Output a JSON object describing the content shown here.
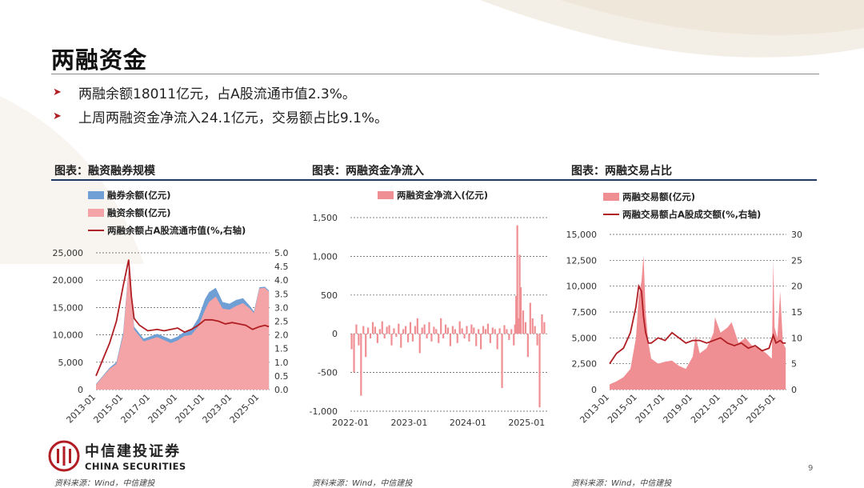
{
  "page": {
    "title": "两融资金",
    "bullets": [
      "两融余额18011亿元，占A股流通市值2.3%。",
      "上周两融资金净流入24.1亿元，交易额占比9.1%。"
    ],
    "brand_cn": "中信建投证券",
    "brand_en": "CHINA SECURITIES",
    "page_number": "9",
    "colors": {
      "accent_red": "#b01e23",
      "pink": "#f4a4a6",
      "blue": "#6f9fd4",
      "navy": "#1f3864"
    }
  },
  "chart_data": [
    {
      "type": "area",
      "panel_title": "图表：融资融券规模",
      "source": "资料来源：Wind，中信建投",
      "y_ticks": [
        "0",
        "5,000",
        "10,000",
        "15,000",
        "20,000",
        "25,000"
      ],
      "y2_ticks": [
        "0.0",
        "0.5",
        "1.0",
        "1.5",
        "2.0",
        "2.5",
        "3.0",
        "3.5",
        "4.0",
        "4.5",
        "5.0"
      ],
      "x_ticks": [
        "2013-01",
        "2015-01",
        "2017-01",
        "2019-01",
        "2021-01",
        "2023-01",
        "2025-01"
      ],
      "ylim": [
        0,
        25000
      ],
      "y2lim": [
        0,
        5
      ],
      "xlim": [
        2013.0,
        2025.75
      ],
      "series": [
        {
          "name": "融券余额(亿元)",
          "color": "#6f9fd4",
          "kind": "area",
          "x": [
            2013.0,
            2014.0,
            2014.5,
            2015.0,
            2015.4,
            2015.8,
            2016.5,
            2017.5,
            2018.5,
            2019.0,
            2019.5,
            2020.0,
            2020.5,
            2021.0,
            2021.3,
            2021.8,
            2022.3,
            2022.8,
            2023.3,
            2023.8,
            2024.3,
            2024.6,
            2025.0,
            2025.4,
            2025.7
          ],
          "values": [
            1000,
            4000,
            5000,
            10500,
            22300,
            11500,
            9300,
            10200,
            9200,
            9700,
            10600,
            11000,
            13000,
            16500,
            17800,
            18600,
            16000,
            15700,
            16400,
            16700,
            15300,
            14300,
            18700,
            18800,
            18100
          ]
        },
        {
          "name": "融资余额(亿元)",
          "color": "#f4a4a6",
          "kind": "area",
          "x": [
            2013.0,
            2014.0,
            2014.5,
            2015.0,
            2015.4,
            2015.8,
            2016.5,
            2017.5,
            2018.5,
            2019.0,
            2019.5,
            2020.0,
            2020.5,
            2021.0,
            2021.3,
            2021.8,
            2022.3,
            2022.8,
            2023.3,
            2023.8,
            2024.3,
            2024.6,
            2025.0,
            2025.4,
            2025.7
          ],
          "values": [
            900,
            3800,
            4700,
            10000,
            22000,
            11000,
            8800,
            9600,
            8500,
            9000,
            9800,
            10000,
            11500,
            14500,
            16000,
            17000,
            14800,
            14600,
            15300,
            15800,
            14800,
            14000,
            18500,
            18600,
            17900
          ]
        },
        {
          "name": "两融余额占A股流通市值(%,右轴)",
          "color": "#b01e23",
          "kind": "line",
          "axis": "right",
          "x": [
            2013.0,
            2013.5,
            2014.0,
            2014.5,
            2015.0,
            2015.4,
            2015.6,
            2015.8,
            2016.2,
            2016.8,
            2017.5,
            2018.0,
            2018.5,
            2019.0,
            2019.5,
            2020.0,
            2020.5,
            2021.0,
            2021.5,
            2022.0,
            2022.5,
            2023.0,
            2023.5,
            2024.0,
            2024.5,
            2025.0,
            2025.4,
            2025.7
          ],
          "values": [
            0.5,
            1.1,
            1.7,
            2.5,
            3.8,
            4.75,
            3.4,
            2.6,
            2.35,
            2.15,
            2.2,
            2.15,
            2.2,
            2.25,
            2.1,
            2.2,
            2.35,
            2.55,
            2.55,
            2.5,
            2.4,
            2.45,
            2.4,
            2.35,
            2.2,
            2.3,
            2.35,
            2.3
          ]
        }
      ]
    },
    {
      "type": "bar",
      "panel_title": "图表：两融资金净流入",
      "source": "资料来源：Wind，中信建投",
      "y_ticks": [
        "-1,000",
        "-500",
        "0",
        "500",
        "1,000",
        "1,500"
      ],
      "x_ticks": [
        "2022-01",
        "2023-01",
        "2024-01",
        "2025-01"
      ],
      "ylim": [
        -1000,
        1500
      ],
      "xlim": [
        2022.0,
        2025.35
      ],
      "series": [
        {
          "name": "两融资金净流入(亿元)",
          "color": "#f08f93",
          "x": [
            2022.02,
            2022.06,
            2022.1,
            2022.14,
            2022.18,
            2022.22,
            2022.26,
            2022.3,
            2022.34,
            2022.38,
            2022.42,
            2022.46,
            2022.5,
            2022.54,
            2022.58,
            2022.62,
            2022.66,
            2022.7,
            2022.74,
            2022.78,
            2022.82,
            2022.86,
            2022.9,
            2022.94,
            2022.98,
            2023.02,
            2023.06,
            2023.1,
            2023.14,
            2023.18,
            2023.22,
            2023.26,
            2023.3,
            2023.34,
            2023.38,
            2023.42,
            2023.46,
            2023.5,
            2023.54,
            2023.58,
            2023.62,
            2023.66,
            2023.7,
            2023.74,
            2023.78,
            2023.82,
            2023.86,
            2023.9,
            2023.94,
            2023.98,
            2024.02,
            2024.06,
            2024.1,
            2024.14,
            2024.18,
            2024.22,
            2024.26,
            2024.3,
            2024.34,
            2024.38,
            2024.42,
            2024.46,
            2024.5,
            2024.54,
            2024.58,
            2024.62,
            2024.66,
            2024.7,
            2024.74,
            2024.78,
            2024.8,
            2024.82,
            2024.84,
            2024.86,
            2024.88,
            2024.9,
            2024.94,
            2024.98,
            2025.02,
            2025.06,
            2025.1,
            2025.14,
            2025.18,
            2025.22,
            2025.26,
            2025.3
          ],
          "values": [
            -200,
            -500,
            120,
            -150,
            -800,
            100,
            -300,
            80,
            -60,
            150,
            90,
            -120,
            60,
            160,
            -60,
            90,
            110,
            -150,
            70,
            -40,
            130,
            -180,
            60,
            100,
            -110,
            150,
            -100,
            100,
            200,
            -250,
            80,
            120,
            -60,
            150,
            -100,
            90,
            60,
            -120,
            200,
            -60,
            120,
            80,
            -160,
            100,
            60,
            -120,
            160,
            70,
            -60,
            100,
            -100,
            120,
            80,
            -160,
            60,
            -200,
            100,
            60,
            130,
            -120,
            80,
            60,
            -200,
            70,
            -700,
            110,
            60,
            -80,
            60,
            -150,
            120,
            490,
            1400,
            200,
            1020,
            600,
            300,
            150,
            -300,
            400,
            200,
            100,
            -150,
            -950,
            250,
            150
          ]
        }
      ]
    },
    {
      "type": "area",
      "panel_title": "图表：两融交易占比",
      "source": "资料来源：Wind，中信建投",
      "y_ticks": [
        "0",
        "2,500",
        "5,000",
        "7,500",
        "10,000",
        "12,500",
        "15,000"
      ],
      "y2_ticks": [
        "0",
        "5",
        "10",
        "15",
        "20",
        "25",
        "30"
      ],
      "x_ticks": [
        "2013-01",
        "2015-01",
        "2017-01",
        "2019-01",
        "2021-01",
        "2023-01",
        "2025-01"
      ],
      "ylim": [
        0,
        15000
      ],
      "y2lim": [
        0,
        30
      ],
      "xlim": [
        2013.0,
        2025.75
      ],
      "series": [
        {
          "name": "两融交易额(亿元)",
          "color": "#f08f93",
          "kind": "area",
          "x": [
            2013.0,
            2013.5,
            2014.0,
            2014.5,
            2014.9,
            2015.1,
            2015.3,
            2015.45,
            2015.6,
            2015.8,
            2016.0,
            2016.5,
            2017.0,
            2017.5,
            2018.0,
            2018.5,
            2019.0,
            2019.2,
            2019.5,
            2020.0,
            2020.5,
            2020.6,
            2021.0,
            2021.5,
            2021.8,
            2022.3,
            2022.8,
            2023.3,
            2023.8,
            2024.3,
            2024.7,
            2024.8,
            2024.9,
            2025.1,
            2025.3,
            2025.5,
            2025.7
          ],
          "values": [
            500,
            800,
            1200,
            2000,
            5000,
            9000,
            10500,
            13000,
            7500,
            4500,
            3000,
            2500,
            2700,
            2800,
            2300,
            2000,
            3200,
            5200,
            3500,
            4000,
            5500,
            7000,
            5500,
            6000,
            6500,
            4500,
            5000,
            4200,
            4000,
            3500,
            3000,
            12500,
            6000,
            5000,
            9500,
            4500,
            4000
          ]
        },
        {
          "name": "两融交易额占A股成交额(%,右轴)",
          "color": "#b01e23",
          "kind": "line",
          "axis": "right",
          "x": [
            2013.0,
            2013.5,
            2014.0,
            2014.5,
            2014.9,
            2015.1,
            2015.3,
            2015.45,
            2015.6,
            2015.8,
            2016.0,
            2016.5,
            2017.0,
            2017.5,
            2018.0,
            2018.5,
            2019.0,
            2019.5,
            2020.0,
            2020.5,
            2021.0,
            2021.5,
            2022.0,
            2022.5,
            2023.0,
            2023.5,
            2024.0,
            2024.5,
            2024.8,
            2025.0,
            2025.3,
            2025.5,
            2025.7
          ],
          "values": [
            5,
            7,
            8,
            11,
            16,
            20,
            19,
            14,
            11,
            9,
            9,
            10,
            9.5,
            11,
            10,
            9,
            9.5,
            9.5,
            9,
            9.5,
            10,
            9,
            8.5,
            9,
            8,
            8.5,
            7.5,
            8,
            10.5,
            9,
            9.5,
            9,
            9
          ]
        }
      ]
    }
  ]
}
